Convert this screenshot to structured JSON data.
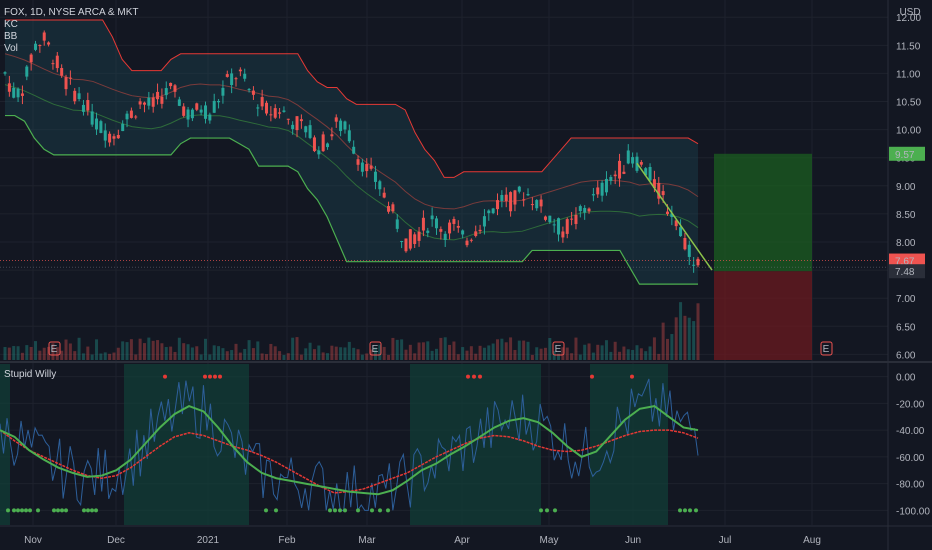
{
  "chart_data": {
    "type": "candlestick",
    "symbol": "FOX, 1D, NYSE ARCA & MKT",
    "currency": "USD",
    "indicators": [
      "KC",
      "BB",
      "Vol"
    ],
    "x_ticks": [
      "Nov",
      "Dec",
      "2021",
      "Feb",
      "Mar",
      "Apr",
      "May",
      "Jun",
      "Jul",
      "Aug"
    ],
    "price_ticks": [
      "12.00",
      "11.50",
      "11.00",
      "10.50",
      "10.00",
      "9.50",
      "9.00",
      "8.50",
      "8.00",
      "7.50",
      "7.00",
      "6.50",
      "6.00"
    ],
    "ylim": [
      5.9,
      12.2
    ],
    "close_path": [
      11.0,
      10.6,
      10.8,
      11.5,
      11.6,
      11.3,
      10.9,
      10.7,
      10.5,
      10.2,
      10.0,
      9.9,
      10.1,
      10.3,
      10.5,
      10.4,
      10.6,
      10.7,
      10.5,
      10.2,
      10.4,
      10.3,
      10.6,
      10.9,
      11.0,
      10.7,
      10.5,
      10.3,
      10.4,
      10.2,
      10.1,
      10.0,
      9.7,
      9.8,
      10.1,
      10.0,
      9.6,
      9.3,
      9.1,
      8.8,
      8.4,
      8.0,
      8.1,
      8.3,
      8.4,
      8.2,
      8.3,
      8.0,
      8.2,
      8.4,
      8.6,
      8.8,
      8.7,
      8.9,
      8.8,
      8.6,
      8.4,
      8.2,
      8.3,
      8.5,
      8.7,
      8.9,
      9.1,
      9.3,
      9.5,
      9.4,
      9.2,
      8.9,
      8.6,
      8.3,
      7.9,
      7.6
    ],
    "price_labels": [
      {
        "label": "9.57",
        "value": 9.57,
        "color": "#4caf50"
      },
      {
        "label": "7.67",
        "value": 7.67,
        "color": "#ef5350"
      },
      {
        "label": "7.48",
        "value": 7.48,
        "color": "#2a2e39"
      }
    ],
    "earnings_marker": "E",
    "indicator_panel": {
      "title": "Stupid Willy",
      "ticks": [
        "0.00",
        "-20.00",
        "-40.00",
        "-60.00",
        "-80.00",
        "-100.00"
      ],
      "ylim": [
        -105,
        5
      ],
      "green_line": [
        -40,
        -45,
        -55,
        -62,
        -68,
        -72,
        -75,
        -74,
        -70,
        -62,
        -50,
        -38,
        -28,
        -22,
        -26,
        -38,
        -52,
        -64,
        -72,
        -76,
        -78,
        -80,
        -82,
        -84,
        -86,
        -87,
        -88,
        -85,
        -78,
        -70,
        -65,
        -58,
        -52,
        -45,
        -38,
        -33,
        -31,
        -34,
        -42,
        -52,
        -60,
        -56,
        -44,
        -32,
        -24,
        -22,
        -30,
        -38,
        -40
      ],
      "red_line": [
        -40,
        -48,
        -55,
        -60,
        -65,
        -70,
        -74,
        -76,
        -74,
        -68,
        -60,
        -52,
        -45,
        -42,
        -44,
        -48,
        -52,
        -55,
        -59,
        -64,
        -70,
        -76,
        -82,
        -87,
        -86,
        -84,
        -80,
        -76,
        -72,
        -66,
        -60,
        -55,
        -50,
        -46,
        -44,
        -45,
        -48,
        -52,
        -55,
        -56,
        -55,
        -52,
        -48,
        -44,
        -41,
        -40,
        -40,
        -42,
        -46
      ]
    }
  }
}
